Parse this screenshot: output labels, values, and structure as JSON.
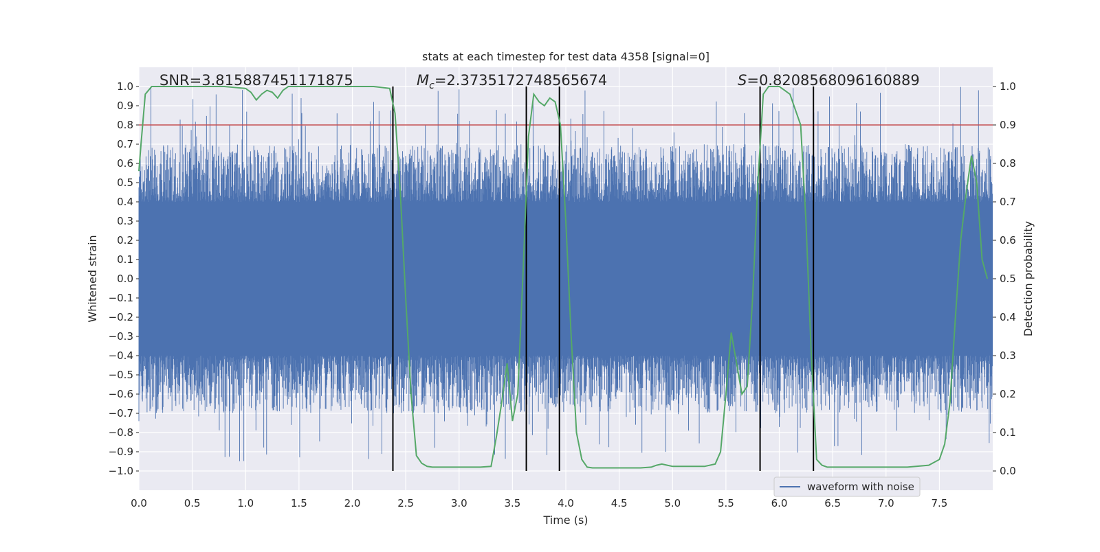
{
  "chart_data": {
    "type": "line",
    "title": "stats at each timestep for test data 4358 [signal=0]",
    "xlabel": "Time (s)",
    "ylabel_left": "Whitened strain",
    "ylabel_right": "Detection probability",
    "xlim": [
      0.0,
      8.0
    ],
    "ylim_left": [
      -1.1,
      1.1
    ],
    "ylim_right": [
      -0.05,
      1.05
    ],
    "x_ticks": [
      "0.0",
      "0.5",
      "1.0",
      "1.5",
      "2.0",
      "2.5",
      "3.0",
      "3.5",
      "4.0",
      "4.5",
      "5.0",
      "5.5",
      "6.0",
      "6.5",
      "7.0",
      "7.5"
    ],
    "y_ticks_left": [
      "1.0",
      "0.9",
      "0.8",
      "0.7",
      "0.6",
      "0.5",
      "0.4",
      "0.3",
      "0.2",
      "0.1",
      "0.0",
      "−0.1",
      "−0.2",
      "−0.3",
      "−0.4",
      "−0.5",
      "−0.6",
      "−0.7",
      "−0.8",
      "−0.9",
      "−1.0"
    ],
    "y_ticks_right": [
      "1.0",
      "0.9",
      "0.8",
      "0.7",
      "0.6",
      "0.5",
      "0.4",
      "0.3",
      "0.2",
      "0.1",
      "0.0"
    ],
    "annotations": {
      "snr": "SNR=3.815887451171875",
      "mc_value": "=2.3735172748565674",
      "s_symbol": "S",
      "s_value": "=0.8208568096160889"
    },
    "threshold": 0.9,
    "event_lines_x": [
      2.38,
      3.63,
      3.94,
      5.82,
      6.32
    ],
    "legend": [
      {
        "name": "waveform with noise",
        "color": "#4c72b0"
      }
    ],
    "series": [
      {
        "name": "waveform with noise",
        "color": "#4c72b0",
        "envelope": {
          "band_abs": 0.4,
          "typical_peak": 0.65,
          "max": 1.0,
          "min": -0.95
        }
      },
      {
        "name": "detection probability",
        "color": "#55a868",
        "x": [
          0.0,
          0.02,
          0.06,
          0.12,
          0.2,
          0.4,
          0.6,
          0.8,
          1.0,
          1.05,
          1.1,
          1.15,
          1.2,
          1.25,
          1.3,
          1.35,
          1.4,
          1.45,
          1.5,
          1.7,
          2.0,
          2.2,
          2.35,
          2.4,
          2.45,
          2.5,
          2.55,
          2.6,
          2.65,
          2.7,
          2.75,
          2.8,
          2.9,
          3.0,
          3.1,
          3.2,
          3.3,
          3.35,
          3.4,
          3.45,
          3.5,
          3.55,
          3.6,
          3.65,
          3.7,
          3.75,
          3.8,
          3.85,
          3.9,
          3.95,
          4.0,
          4.05,
          4.1,
          4.15,
          4.2,
          4.25,
          4.3,
          4.5,
          4.7,
          4.8,
          4.85,
          4.9,
          4.95,
          5.0,
          5.1,
          5.2,
          5.3,
          5.4,
          5.45,
          5.5,
          5.55,
          5.6,
          5.65,
          5.7,
          5.75,
          5.8,
          5.85,
          5.9,
          5.95,
          6.0,
          6.05,
          6.1,
          6.2,
          6.25,
          6.3,
          6.35,
          6.4,
          6.45,
          6.5,
          6.55,
          6.6,
          6.7,
          6.8,
          7.0,
          7.2,
          7.4,
          7.5,
          7.55,
          7.6,
          7.65,
          7.7,
          7.75,
          7.8,
          7.85,
          7.9,
          7.95
        ],
        "y": [
          0.78,
          0.85,
          0.98,
          1.0,
          1.0,
          1.0,
          1.0,
          1.0,
          0.995,
          0.985,
          0.965,
          0.98,
          0.99,
          0.985,
          0.97,
          0.99,
          1.0,
          1.0,
          1.0,
          1.0,
          1.0,
          1.0,
          0.995,
          0.93,
          0.72,
          0.45,
          0.2,
          0.04,
          0.02,
          0.012,
          0.01,
          0.01,
          0.01,
          0.01,
          0.01,
          0.01,
          0.012,
          0.09,
          0.18,
          0.28,
          0.13,
          0.2,
          0.52,
          0.87,
          0.98,
          0.96,
          0.95,
          0.97,
          0.96,
          0.9,
          0.65,
          0.35,
          0.1,
          0.03,
          0.01,
          0.008,
          0.008,
          0.008,
          0.008,
          0.01,
          0.015,
          0.018,
          0.015,
          0.012,
          0.012,
          0.012,
          0.012,
          0.018,
          0.05,
          0.2,
          0.36,
          0.28,
          0.2,
          0.22,
          0.45,
          0.75,
          0.98,
          1.0,
          1.0,
          1.0,
          0.99,
          0.98,
          0.9,
          0.65,
          0.3,
          0.03,
          0.015,
          0.01,
          0.01,
          0.01,
          0.01,
          0.01,
          0.01,
          0.01,
          0.01,
          0.015,
          0.03,
          0.07,
          0.18,
          0.4,
          0.6,
          0.72,
          0.82,
          0.75,
          0.55,
          0.5
        ]
      }
    ]
  }
}
